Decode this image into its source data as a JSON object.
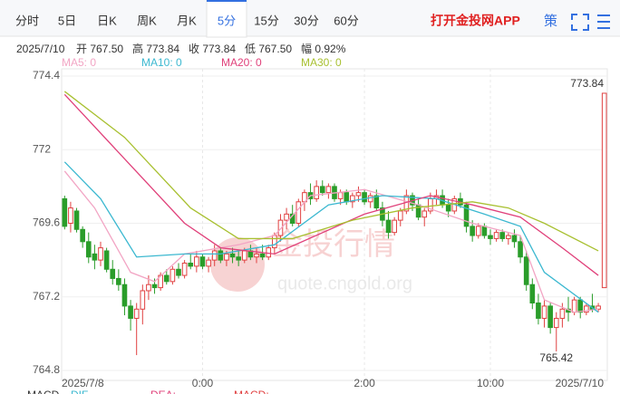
{
  "tabs": [
    "分时",
    "5日",
    "日K",
    "周K",
    "月K",
    "5分",
    "15分",
    "30分",
    "60分"
  ],
  "active_tab": 5,
  "app_link": "打开金投网APP",
  "tool": "策",
  "info": [
    "2025/7/10",
    "开 767.50",
    "高 773.84",
    "收 773.84",
    "低 767.50",
    "幅 0.92%"
  ],
  "indicators": [
    {
      "name": "MACD",
      "color": "#333"
    },
    {
      "name": "DIF",
      "color": "#3bb8d0"
    },
    {
      "name": "DEA:",
      "color": "#e0407a"
    },
    {
      "name": "MACD:",
      "color": "#e04040"
    }
  ],
  "watermark": [
    "金投行情",
    "quote.cngold.org"
  ],
  "chart_data": {
    "type": "candlestick",
    "up_color": "#e04040",
    "down_color": "#2a9d2a",
    "ylim": [
      764.8,
      774.4
    ],
    "yticks": [
      774.4,
      772,
      769.6,
      767.2,
      764.8
    ],
    "xlim": [
      -0.5,
      90.5
    ],
    "xticks": [
      {
        "value": 0,
        "label": "2025/7/8"
      },
      {
        "value": 23,
        "label": "0:00"
      },
      {
        "value": 50,
        "label": "2:00"
      },
      {
        "value": 71,
        "label": "10:00"
      },
      {
        "value": 90,
        "label": "2025/7/10"
      }
    ],
    "max_label": {
      "x": 90,
      "value": 773.84,
      "label": "773.84"
    },
    "min_label": {
      "x": 82,
      "value": 765.42,
      "label": "765.42"
    },
    "ohlc": [
      [
        770.4,
        770.5,
        769.4,
        769.5
      ],
      [
        769.6,
        770.3,
        769.3,
        770.1
      ],
      [
        770.0,
        770.1,
        769.3,
        769.4
      ],
      [
        769.4,
        769.5,
        768.8,
        769.0
      ],
      [
        769.0,
        769.3,
        768.3,
        768.5
      ],
      [
        768.6,
        768.9,
        768.1,
        768.4
      ],
      [
        768.4,
        769.0,
        768.2,
        768.8
      ],
      [
        768.7,
        768.8,
        768.0,
        768.1
      ],
      [
        768.1,
        768.4,
        767.6,
        767.8
      ],
      [
        767.8,
        768.1,
        767.4,
        767.6
      ],
      [
        767.6,
        767.8,
        766.6,
        766.9
      ],
      [
        766.9,
        767.1,
        766.1,
        766.5
      ],
      [
        766.5,
        767.0,
        765.3,
        766.8
      ],
      [
        766.8,
        767.6,
        766.3,
        767.4
      ],
      [
        767.4,
        767.9,
        767.1,
        767.6
      ],
      [
        767.6,
        767.8,
        767.3,
        767.5
      ],
      [
        767.5,
        768.0,
        767.4,
        767.9
      ],
      [
        767.9,
        768.1,
        767.6,
        767.7
      ],
      [
        767.7,
        768.2,
        767.6,
        768.1
      ],
      [
        768.1,
        768.3,
        767.8,
        767.9
      ],
      [
        767.9,
        768.4,
        767.8,
        768.3
      ],
      [
        768.3,
        768.6,
        768.1,
        768.2
      ],
      [
        768.2,
        768.7,
        768.0,
        768.5
      ],
      [
        768.5,
        768.6,
        768.1,
        768.2
      ],
      [
        768.2,
        768.5,
        768.0,
        768.4
      ],
      [
        768.4,
        768.9,
        768.2,
        768.7
      ],
      [
        768.7,
        768.8,
        768.3,
        768.4
      ],
      [
        768.4,
        768.7,
        768.2,
        768.6
      ],
      [
        768.6,
        768.8,
        768.3,
        768.5
      ],
      [
        768.5,
        768.7,
        768.2,
        768.4
      ],
      [
        768.4,
        768.8,
        768.3,
        768.7
      ],
      [
        768.7,
        768.9,
        768.4,
        768.5
      ],
      [
        768.5,
        768.8,
        768.3,
        768.6
      ],
      [
        768.6,
        768.9,
        768.4,
        768.5
      ],
      [
        768.5,
        768.9,
        768.4,
        768.8
      ],
      [
        768.8,
        769.3,
        768.6,
        769.2
      ],
      [
        769.2,
        769.9,
        769.0,
        769.7
      ],
      [
        769.7,
        770.1,
        769.4,
        769.9
      ],
      [
        769.9,
        770.2,
        769.5,
        769.6
      ],
      [
        769.6,
        770.4,
        769.5,
        770.3
      ],
      [
        770.3,
        770.7,
        770.0,
        770.6
      ],
      [
        770.6,
        770.9,
        770.2,
        770.4
      ],
      [
        770.4,
        771.0,
        770.3,
        770.8
      ],
      [
        770.8,
        771.0,
        770.5,
        770.6
      ],
      [
        770.6,
        770.9,
        770.4,
        770.8
      ],
      [
        770.8,
        770.9,
        770.3,
        770.4
      ],
      [
        770.4,
        770.7,
        770.2,
        770.6
      ],
      [
        770.6,
        770.7,
        770.2,
        770.3
      ],
      [
        770.3,
        770.6,
        770.1,
        770.5
      ],
      [
        770.5,
        770.8,
        770.3,
        770.6
      ],
      [
        770.6,
        770.7,
        770.2,
        770.3
      ],
      [
        770.3,
        770.6,
        770.1,
        770.5
      ],
      [
        770.5,
        770.7,
        770.0,
        770.1
      ],
      [
        770.1,
        770.3,
        769.5,
        769.7
      ],
      [
        769.7,
        770.0,
        769.1,
        769.3
      ],
      [
        769.3,
        769.8,
        769.2,
        769.7
      ],
      [
        769.7,
        770.1,
        769.5,
        770.0
      ],
      [
        770.0,
        770.7,
        769.9,
        770.5
      ],
      [
        770.5,
        770.6,
        770.0,
        770.2
      ],
      [
        770.2,
        770.4,
        769.7,
        769.8
      ],
      [
        769.8,
        770.1,
        769.5,
        770.0
      ],
      [
        770.0,
        770.6,
        769.9,
        770.4
      ],
      [
        770.4,
        770.7,
        770.2,
        770.5
      ],
      [
        770.5,
        770.7,
        770.1,
        770.2
      ],
      [
        770.2,
        770.4,
        769.8,
        770.0
      ],
      [
        770.0,
        770.5,
        769.9,
        770.4
      ],
      [
        770.4,
        770.6,
        770.1,
        770.2
      ],
      [
        770.2,
        770.3,
        769.3,
        769.5
      ],
      [
        769.5,
        769.7,
        769.0,
        769.2
      ],
      [
        769.2,
        769.6,
        769.1,
        769.5
      ],
      [
        769.5,
        769.6,
        769.1,
        769.2
      ],
      [
        769.2,
        769.4,
        768.9,
        769.1
      ],
      [
        769.1,
        769.4,
        769.0,
        769.3
      ],
      [
        769.3,
        769.4,
        769.0,
        769.1
      ],
      [
        769.1,
        769.3,
        768.9,
        769.2
      ],
      [
        769.2,
        769.4,
        768.8,
        769.0
      ],
      [
        769.0,
        769.2,
        768.3,
        768.5
      ],
      [
        768.5,
        768.7,
        767.4,
        767.6
      ],
      [
        767.6,
        767.8,
        766.8,
        767.0
      ],
      [
        767.0,
        767.3,
        766.3,
        766.5
      ],
      [
        766.5,
        767.1,
        766.2,
        766.9
      ],
      [
        766.9,
        767.0,
        766.0,
        766.2
      ],
      [
        766.2,
        766.7,
        765.42,
        766.5
      ],
      [
        766.5,
        767.0,
        766.2,
        766.8
      ],
      [
        766.8,
        767.2,
        766.4,
        766.7
      ],
      [
        766.7,
        767.2,
        766.6,
        767.1
      ],
      [
        767.1,
        767.2,
        766.5,
        766.7
      ],
      [
        766.7,
        767.0,
        766.6,
        766.9
      ],
      [
        766.9,
        767.3,
        766.7,
        766.8
      ],
      [
        766.8,
        767.0,
        766.7,
        766.9
      ],
      [
        767.5,
        773.84,
        767.5,
        773.84
      ]
    ],
    "series": [
      {
        "name": "MA5: 0",
        "color": "#f2a5c4",
        "x": [
          0,
          5,
          11,
          15,
          20,
          29,
          35,
          41,
          50,
          59,
          68,
          76,
          80,
          85,
          89
        ],
        "values": [
          771.3,
          770.1,
          768.0,
          767.7,
          768.6,
          768.9,
          769.2,
          770.5,
          770.7,
          770.2,
          769.6,
          769.2,
          767.1,
          766.7,
          766.8
        ]
      },
      {
        "name": "MA10: 0",
        "color": "#3bb8d0",
        "x": [
          0,
          6,
          12,
          20,
          26,
          35,
          44,
          53,
          62,
          70,
          76,
          80,
          89
        ],
        "values": [
          771.6,
          770.4,
          768.5,
          768.6,
          768.6,
          768.9,
          770.2,
          770.5,
          770.4,
          769.9,
          769.5,
          768.0,
          766.7
        ]
      },
      {
        "name": "MA20: 0",
        "color": "#e0407a",
        "x": [
          0,
          10,
          20,
          26,
          35,
          50,
          61,
          68,
          76,
          83,
          89
        ],
        "values": [
          773.8,
          771.7,
          769.6,
          768.8,
          768.6,
          769.9,
          770.5,
          770.2,
          769.8,
          768.8,
          767.9
        ]
      },
      {
        "name": "MA30: 0",
        "color": "#a8c030",
        "x": [
          0,
          10,
          21,
          29,
          38,
          48,
          58,
          68,
          74,
          80,
          89
        ],
        "values": [
          773.9,
          772.4,
          770.1,
          769.1,
          769.1,
          769.7,
          770.1,
          770.3,
          770.1,
          769.6,
          768.7
        ]
      }
    ]
  }
}
